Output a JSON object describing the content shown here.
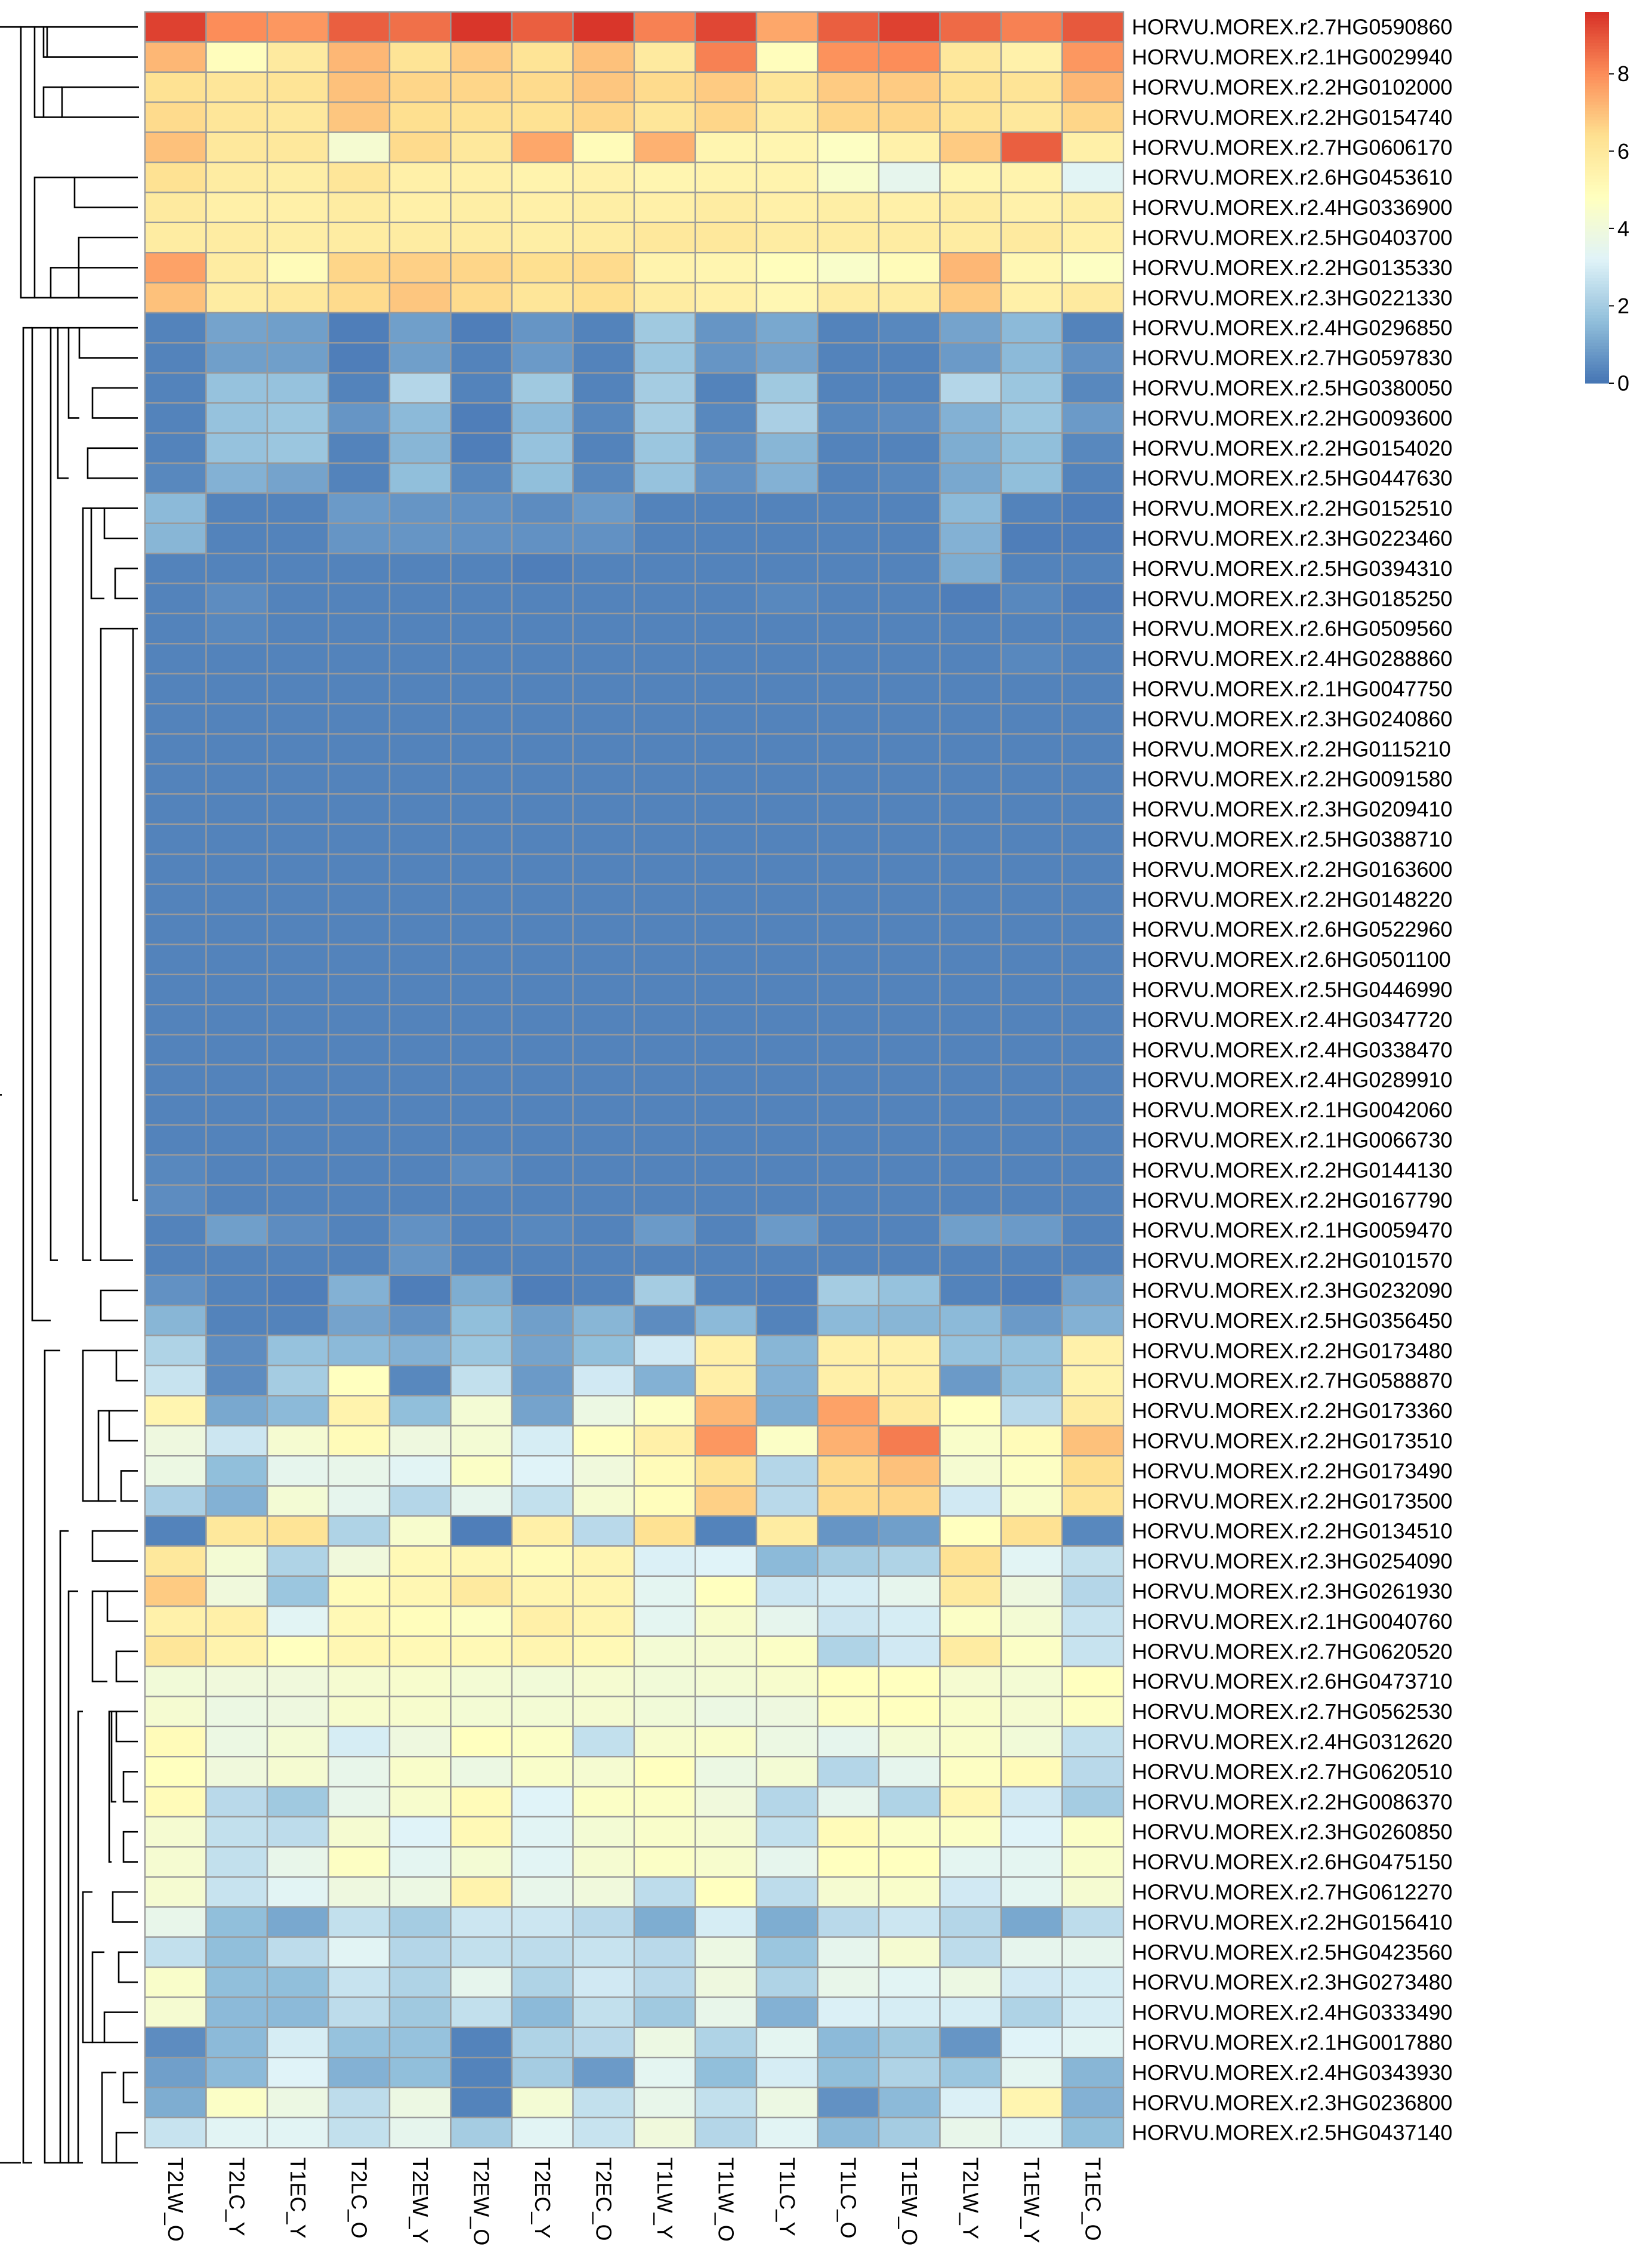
{
  "chart_data": {
    "type": "heatmap",
    "title": "",
    "xlabel": "",
    "ylabel": "",
    "columns": [
      "T2LW_O",
      "T2LC_Y",
      "T1EC_Y",
      "T2LC_O",
      "T2EW_Y",
      "T2EW_O",
      "T2EC_Y",
      "T2EC_O",
      "T1LW_Y",
      "T1LW_O",
      "T1LC_Y",
      "T1LC_O",
      "T1EW_O",
      "T2LW_Y",
      "T1EW_Y",
      "T1EC_O"
    ],
    "rows": [
      "HORVU.MOREX.r2.7HG0590860",
      "HORVU.MOREX.r2.1HG0029940",
      "HORVU.MOREX.r2.2HG0102000",
      "HORVU.MOREX.r2.2HG0154740",
      "HORVU.MOREX.r2.7HG0606170",
      "HORVU.MOREX.r2.6HG0453610",
      "HORVU.MOREX.r2.4HG0336900",
      "HORVU.MOREX.r2.5HG0403700",
      "HORVU.MOREX.r2.2HG0135330",
      "HORVU.MOREX.r2.3HG0221330",
      "HORVU.MOREX.r2.4HG0296850",
      "HORVU.MOREX.r2.7HG0597830",
      "HORVU.MOREX.r2.5HG0380050",
      "HORVU.MOREX.r2.2HG0093600",
      "HORVU.MOREX.r2.2HG0154020",
      "HORVU.MOREX.r2.5HG0447630",
      "HORVU.MOREX.r2.2HG0152510",
      "HORVU.MOREX.r2.3HG0223460",
      "HORVU.MOREX.r2.5HG0394310",
      "HORVU.MOREX.r2.3HG0185250",
      "HORVU.MOREX.r2.6HG0509560",
      "HORVU.MOREX.r2.4HG0288860",
      "HORVU.MOREX.r2.1HG0047750",
      "HORVU.MOREX.r2.3HG0240860",
      "HORVU.MOREX.r2.2HG0115210",
      "HORVU.MOREX.r2.2HG0091580",
      "HORVU.MOREX.r2.3HG0209410",
      "HORVU.MOREX.r2.5HG0388710",
      "HORVU.MOREX.r2.2HG0163600",
      "HORVU.MOREX.r2.2HG0148220",
      "HORVU.MOREX.r2.6HG0522960",
      "HORVU.MOREX.r2.6HG0501100",
      "HORVU.MOREX.r2.5HG0446990",
      "HORVU.MOREX.r2.4HG0347720",
      "HORVU.MOREX.r2.4HG0338470",
      "HORVU.MOREX.r2.4HG0289910",
      "HORVU.MOREX.r2.1HG0042060",
      "HORVU.MOREX.r2.1HG0066730",
      "HORVU.MOREX.r2.2HG0144130",
      "HORVU.MOREX.r2.2HG0167790",
      "HORVU.MOREX.r2.1HG0059470",
      "HORVU.MOREX.r2.2HG0101570",
      "HORVU.MOREX.r2.3HG0232090",
      "HORVU.MOREX.r2.5HG0356450",
      "HORVU.MOREX.r2.2HG0173480",
      "HORVU.MOREX.r2.7HG0588870",
      "HORVU.MOREX.r2.2HG0173360",
      "HORVU.MOREX.r2.2HG0173510",
      "HORVU.MOREX.r2.2HG0173490",
      "HORVU.MOREX.r2.2HG0173500",
      "HORVU.MOREX.r2.2HG0134510",
      "HORVU.MOREX.r2.3HG0254090",
      "HORVU.MOREX.r2.3HG0261930",
      "HORVU.MOREX.r2.1HG0040760",
      "HORVU.MOREX.r2.7HG0620520",
      "HORVU.MOREX.r2.6HG0473710",
      "HORVU.MOREX.r2.7HG0562530",
      "HORVU.MOREX.r2.4HG0312620",
      "HORVU.MOREX.r2.7HG0620510",
      "HORVU.MOREX.r2.2HG0086370",
      "HORVU.MOREX.r2.3HG0260850",
      "HORVU.MOREX.r2.6HG0475150",
      "HORVU.MOREX.r2.7HG0612270",
      "HORVU.MOREX.r2.2HG0156410",
      "HORVU.MOREX.r2.5HG0423560",
      "HORVU.MOREX.r2.3HG0273480",
      "HORVU.MOREX.r2.4HG0333490",
      "HORVU.MOREX.r2.1HG0017880",
      "HORVU.MOREX.r2.4HG0343930",
      "HORVU.MOREX.r2.3HG0236800",
      "HORVU.MOREX.r2.5HG0437140"
    ],
    "values": [
      [
        9.3,
        8.0,
        7.8,
        8.8,
        8.5,
        9.5,
        8.8,
        9.5,
        8.2,
        9.2,
        7.5,
        8.8,
        9.3,
        8.6,
        8.2,
        8.9
      ],
      [
        7.2,
        4.9,
        5.9,
        7.2,
        6.2,
        6.8,
        6.2,
        7.0,
        5.9,
        8.2,
        4.9,
        7.9,
        8.0,
        6.0,
        5.5,
        7.8
      ],
      [
        6.3,
        6.1,
        6.2,
        7.0,
        6.6,
        6.6,
        6.5,
        6.9,
        6.5,
        6.8,
        6.1,
        6.8,
        6.8,
        6.3,
        6.2,
        7.2
      ],
      [
        6.5,
        6.1,
        6.0,
        6.9,
        6.4,
        6.3,
        6.3,
        6.6,
        6.1,
        6.6,
        5.8,
        6.6,
        6.6,
        6.2,
        6.0,
        6.6
      ],
      [
        7.0,
        6.0,
        6.0,
        4.3,
        6.5,
        6.0,
        7.5,
        5.0,
        7.3,
        5.3,
        5.3,
        4.7,
        5.5,
        6.8,
        8.8,
        5.6
      ],
      [
        6.3,
        5.8,
        5.7,
        6.1,
        5.6,
        5.6,
        5.4,
        5.5,
        5.3,
        5.4,
        5.4,
        4.5,
        3.5,
        5.3,
        5.4,
        3.3
      ],
      [
        5.9,
        5.6,
        5.6,
        5.8,
        5.6,
        5.7,
        5.6,
        5.7,
        5.6,
        5.8,
        5.6,
        5.7,
        5.6,
        5.8,
        5.5,
        5.7
      ],
      [
        5.8,
        5.8,
        5.7,
        5.8,
        5.8,
        5.8,
        5.7,
        5.8,
        6.0,
        6.0,
        5.8,
        5.8,
        5.8,
        5.8,
        5.9,
        5.6
      ],
      [
        7.6,
        5.8,
        5.0,
        6.6,
        6.7,
        6.6,
        6.4,
        6.5,
        5.4,
        5.3,
        4.9,
        4.5,
        5.0,
        7.2,
        5.2,
        4.7
      ],
      [
        7.0,
        5.8,
        6.0,
        6.5,
        6.9,
        6.5,
        6.1,
        6.4,
        5.8,
        5.6,
        5.2,
        5.8,
        5.8,
        6.8,
        5.6,
        5.9
      ],
      [
        0.3,
        1.0,
        0.9,
        0.2,
        0.9,
        0.2,
        0.7,
        0.3,
        1.9,
        0.7,
        1.1,
        0.3,
        0.4,
        1.0,
        1.5,
        0.3
      ],
      [
        0.3,
        0.9,
        0.9,
        0.2,
        0.9,
        0.3,
        0.8,
        0.3,
        1.8,
        0.7,
        1.0,
        0.3,
        0.3,
        0.8,
        1.5,
        0.6
      ],
      [
        0.3,
        1.7,
        1.7,
        0.3,
        2.3,
        0.3,
        1.9,
        0.3,
        2.0,
        0.3,
        1.9,
        0.3,
        0.3,
        2.3,
        1.8,
        0.4
      ],
      [
        0.3,
        1.7,
        1.8,
        0.7,
        1.5,
        0.2,
        1.5,
        0.4,
        2.0,
        0.4,
        2.1,
        0.4,
        0.5,
        1.3,
        1.8,
        0.8
      ],
      [
        0.3,
        1.7,
        1.8,
        0.3,
        1.4,
        0.2,
        1.7,
        0.3,
        1.8,
        0.5,
        1.4,
        0.3,
        0.3,
        1.2,
        1.6,
        0.4
      ],
      [
        0.4,
        1.3,
        1.0,
        0.3,
        1.6,
        0.4,
        1.6,
        0.4,
        1.7,
        0.6,
        1.3,
        0.3,
        0.4,
        1.1,
        1.6,
        0.3
      ],
      [
        1.5,
        0.3,
        0.3,
        0.8,
        0.7,
        0.6,
        0.5,
        0.8,
        0.3,
        0.3,
        0.3,
        0.3,
        0.3,
        1.5,
        0.3,
        0.2
      ],
      [
        1.4,
        0.3,
        0.3,
        0.7,
        0.7,
        0.6,
        0.6,
        0.6,
        0.3,
        0.3,
        0.3,
        0.3,
        0.3,
        1.3,
        0.2,
        0.2
      ],
      [
        0.3,
        0.3,
        0.3,
        0.3,
        0.3,
        0.3,
        0.2,
        0.3,
        0.3,
        0.3,
        0.3,
        0.3,
        0.3,
        1.2,
        0.3,
        0.3
      ],
      [
        0.3,
        0.5,
        0.3,
        0.3,
        0.3,
        0.3,
        0.3,
        0.3,
        0.3,
        0.3,
        0.4,
        0.3,
        0.3,
        0.2,
        0.4,
        0.2
      ],
      [
        0.3,
        0.4,
        0.3,
        0.3,
        0.3,
        0.3,
        0.3,
        0.3,
        0.3,
        0.3,
        0.3,
        0.3,
        0.3,
        0.3,
        0.3,
        0.3
      ],
      [
        0.3,
        0.3,
        0.3,
        0.3,
        0.3,
        0.3,
        0.3,
        0.3,
        0.3,
        0.3,
        0.3,
        0.3,
        0.3,
        0.3,
        0.4,
        0.3
      ],
      [
        0.3,
        0.3,
        0.3,
        0.3,
        0.3,
        0.3,
        0.3,
        0.3,
        0.3,
        0.3,
        0.3,
        0.3,
        0.3,
        0.3,
        0.3,
        0.3
      ],
      [
        0.3,
        0.3,
        0.3,
        0.3,
        0.3,
        0.3,
        0.3,
        0.3,
        0.3,
        0.3,
        0.3,
        0.3,
        0.3,
        0.3,
        0.3,
        0.3
      ],
      [
        0.3,
        0.3,
        0.3,
        0.3,
        0.3,
        0.3,
        0.3,
        0.3,
        0.3,
        0.3,
        0.3,
        0.3,
        0.3,
        0.3,
        0.3,
        0.3
      ],
      [
        0.3,
        0.3,
        0.3,
        0.3,
        0.3,
        0.3,
        0.3,
        0.3,
        0.3,
        0.3,
        0.3,
        0.3,
        0.3,
        0.3,
        0.3,
        0.3
      ],
      [
        0.3,
        0.3,
        0.3,
        0.3,
        0.3,
        0.3,
        0.3,
        0.3,
        0.3,
        0.3,
        0.3,
        0.3,
        0.3,
        0.3,
        0.3,
        0.3
      ],
      [
        0.3,
        0.3,
        0.3,
        0.3,
        0.3,
        0.3,
        0.3,
        0.3,
        0.3,
        0.3,
        0.3,
        0.3,
        0.3,
        0.3,
        0.3,
        0.3
      ],
      [
        0.3,
        0.3,
        0.3,
        0.3,
        0.3,
        0.3,
        0.3,
        0.3,
        0.3,
        0.3,
        0.3,
        0.3,
        0.3,
        0.3,
        0.3,
        0.3
      ],
      [
        0.3,
        0.3,
        0.3,
        0.3,
        0.3,
        0.3,
        0.3,
        0.3,
        0.3,
        0.3,
        0.3,
        0.3,
        0.3,
        0.3,
        0.3,
        0.3
      ],
      [
        0.3,
        0.3,
        0.3,
        0.3,
        0.3,
        0.3,
        0.3,
        0.3,
        0.3,
        0.3,
        0.3,
        0.3,
        0.3,
        0.3,
        0.3,
        0.3
      ],
      [
        0.3,
        0.3,
        0.3,
        0.3,
        0.3,
        0.3,
        0.3,
        0.3,
        0.3,
        0.3,
        0.3,
        0.3,
        0.3,
        0.3,
        0.3,
        0.3
      ],
      [
        0.3,
        0.3,
        0.3,
        0.3,
        0.3,
        0.3,
        0.3,
        0.3,
        0.3,
        0.3,
        0.3,
        0.3,
        0.3,
        0.3,
        0.3,
        0.3
      ],
      [
        0.3,
        0.3,
        0.3,
        0.3,
        0.3,
        0.3,
        0.3,
        0.3,
        0.3,
        0.3,
        0.3,
        0.3,
        0.3,
        0.3,
        0.3,
        0.3
      ],
      [
        0.3,
        0.3,
        0.3,
        0.3,
        0.3,
        0.3,
        0.3,
        0.3,
        0.3,
        0.3,
        0.3,
        0.3,
        0.3,
        0.3,
        0.3,
        0.3
      ],
      [
        0.3,
        0.3,
        0.3,
        0.3,
        0.3,
        0.3,
        0.3,
        0.3,
        0.3,
        0.3,
        0.3,
        0.3,
        0.3,
        0.3,
        0.3,
        0.3
      ],
      [
        0.3,
        0.3,
        0.3,
        0.3,
        0.3,
        0.3,
        0.3,
        0.3,
        0.3,
        0.3,
        0.3,
        0.3,
        0.3,
        0.3,
        0.3,
        0.3
      ],
      [
        0.3,
        0.3,
        0.3,
        0.3,
        0.3,
        0.3,
        0.3,
        0.3,
        0.3,
        0.3,
        0.3,
        0.3,
        0.3,
        0.3,
        0.3,
        0.3
      ],
      [
        0.4,
        0.3,
        0.3,
        0.3,
        0.3,
        0.5,
        0.3,
        0.3,
        0.3,
        0.3,
        0.3,
        0.3,
        0.3,
        0.3,
        0.3,
        0.3
      ],
      [
        0.5,
        0.3,
        0.3,
        0.3,
        0.3,
        0.3,
        0.3,
        0.3,
        0.3,
        0.3,
        0.3,
        0.3,
        0.3,
        0.3,
        0.3,
        0.3
      ],
      [
        0.3,
        0.9,
        0.5,
        0.3,
        0.6,
        0.3,
        0.4,
        0.3,
        0.8,
        0.3,
        0.8,
        0.3,
        0.3,
        0.9,
        0.8,
        0.3
      ],
      [
        0.3,
        0.3,
        0.3,
        0.3,
        0.7,
        0.3,
        0.3,
        0.3,
        0.3,
        0.3,
        0.3,
        0.3,
        0.3,
        0.3,
        0.3,
        0.3
      ],
      [
        0.6,
        0.3,
        0.2,
        1.3,
        0.2,
        1.2,
        0.2,
        0.3,
        2.0,
        0.3,
        0.2,
        2.0,
        1.7,
        0.3,
        0.2,
        1.0
      ],
      [
        1.4,
        0.3,
        0.3,
        1.0,
        0.6,
        1.6,
        0.9,
        1.4,
        0.5,
        1.5,
        0.3,
        1.5,
        1.4,
        1.5,
        0.8,
        1.3
      ],
      [
        2.2,
        0.5,
        1.7,
        1.5,
        1.3,
        1.8,
        1.0,
        1.6,
        2.9,
        5.6,
        1.4,
        5.6,
        5.5,
        1.7,
        1.7,
        5.5
      ],
      [
        2.7,
        0.5,
        2.0,
        4.8,
        0.4,
        2.6,
        0.8,
        2.9,
        1.3,
        5.6,
        1.3,
        5.6,
        5.6,
        0.8,
        1.7,
        5.4
      ],
      [
        5.3,
        1.1,
        1.5,
        5.4,
        1.6,
        4.2,
        1.0,
        3.8,
        4.7,
        7.2,
        1.2,
        7.6,
        5.9,
        4.8,
        2.4,
        5.8
      ],
      [
        3.9,
        2.8,
        4.3,
        5.0,
        3.9,
        4.2,
        3.0,
        4.8,
        5.6,
        7.8,
        4.6,
        7.3,
        8.3,
        4.5,
        5.0,
        7.0
      ],
      [
        3.8,
        1.6,
        3.5,
        3.6,
        3.3,
        4.6,
        3.2,
        4.0,
        5.0,
        6.2,
        2.3,
        6.5,
        7.0,
        4.3,
        4.7,
        6.4
      ],
      [
        2.1,
        1.3,
        4.2,
        3.5,
        2.3,
        3.5,
        2.6,
        4.3,
        4.9,
        6.7,
        2.4,
        6.5,
        6.6,
        2.9,
        4.5,
        6.2
      ],
      [
        0.3,
        6.0,
        6.2,
        2.2,
        4.4,
        0.2,
        5.6,
        2.4,
        6.3,
        0.3,
        5.8,
        0.7,
        0.9,
        4.8,
        6.3,
        0.4
      ],
      [
        6.0,
        4.2,
        2.2,
        4.0,
        5.1,
        5.2,
        5.0,
        5.3,
        3.1,
        3.2,
        1.5,
        2.0,
        2.2,
        6.3,
        3.3,
        2.6
      ],
      [
        6.8,
        4.0,
        1.8,
        5.0,
        5.2,
        5.9,
        5.3,
        5.3,
        3.4,
        4.8,
        2.8,
        3.0,
        3.5,
        5.9,
        3.9,
        2.3
      ],
      [
        5.5,
        5.6,
        3.3,
        5.1,
        4.9,
        4.7,
        5.6,
        5.3,
        3.4,
        4.4,
        3.5,
        2.8,
        3.0,
        4.6,
        4.2,
        2.7
      ],
      [
        6.1,
        5.4,
        4.8,
        5.2,
        5.1,
        5.1,
        5.3,
        5.1,
        4.2,
        4.3,
        4.6,
        2.2,
        2.9,
        5.8,
        4.6,
        2.7
      ],
      [
        4.1,
        4.0,
        4.0,
        4.3,
        4.4,
        4.2,
        4.1,
        4.3,
        4.1,
        4.2,
        4.4,
        4.8,
        4.8,
        4.3,
        4.2,
        4.8
      ],
      [
        4.3,
        3.8,
        3.9,
        4.4,
        4.4,
        4.2,
        4.2,
        4.3,
        4.1,
        3.8,
        3.9,
        4.7,
        4.8,
        4.5,
        4.3,
        4.7
      ],
      [
        5.0,
        3.8,
        4.2,
        3.0,
        3.9,
        4.8,
        4.6,
        2.6,
        4.4,
        4.5,
        3.8,
        3.5,
        4.2,
        4.5,
        4.1,
        2.6
      ],
      [
        4.8,
        4.0,
        4.3,
        3.6,
        4.5,
        3.8,
        4.5,
        4.3,
        4.8,
        3.8,
        4.2,
        2.3,
        3.5,
        4.7,
        5.0,
        2.4
      ],
      [
        5.0,
        2.4,
        1.9,
        3.6,
        4.4,
        5.0,
        3.2,
        4.6,
        4.6,
        4.0,
        2.3,
        3.5,
        2.2,
        5.2,
        2.9,
        2.0
      ],
      [
        4.3,
        2.6,
        2.5,
        4.3,
        3.2,
        5.1,
        3.3,
        4.2,
        4.5,
        4.3,
        2.6,
        5.0,
        4.6,
        4.6,
        3.2,
        4.6
      ],
      [
        4.3,
        2.6,
        3.6,
        4.7,
        3.4,
        4.2,
        3.3,
        4.3,
        4.6,
        4.4,
        3.5,
        4.8,
        4.8,
        3.4,
        3.4,
        4.5
      ],
      [
        4.3,
        2.7,
        3.3,
        3.9,
        3.8,
        5.4,
        3.6,
        4.0,
        2.5,
        4.8,
        2.5,
        4.3,
        4.5,
        2.9,
        3.4,
        4.3
      ],
      [
        3.6,
        1.6,
        1.1,
        2.6,
        2.0,
        2.8,
        2.8,
        2.4,
        1.2,
        3.0,
        1.2,
        2.4,
        2.8,
        2.3,
        1.1,
        2.5
      ],
      [
        2.6,
        1.6,
        2.5,
        3.3,
        2.3,
        2.6,
        2.5,
        2.7,
        2.4,
        3.8,
        1.8,
        3.5,
        4.3,
        2.5,
        3.5,
        3.5
      ],
      [
        4.5,
        1.6,
        1.6,
        2.7,
        2.2,
        3.5,
        2.2,
        2.9,
        2.4,
        3.9,
        2.2,
        3.6,
        3.3,
        3.8,
        2.9,
        3.0
      ],
      [
        4.3,
        1.5,
        1.5,
        2.5,
        1.9,
        2.6,
        1.5,
        2.6,
        1.9,
        3.6,
        1.3,
        3.1,
        3.0,
        3.0,
        2.2,
        3.0
      ],
      [
        0.5,
        1.5,
        3.0,
        1.7,
        1.7,
        0.3,
        2.2,
        2.4,
        3.8,
        2.2,
        3.4,
        1.5,
        1.9,
        0.7,
        3.2,
        3.3
      ],
      [
        0.9,
        1.5,
        3.2,
        1.3,
        1.6,
        0.3,
        2.0,
        0.8,
        3.4,
        1.6,
        3.0,
        1.6,
        2.2,
        1.8,
        3.4,
        1.4
      ],
      [
        1.2,
        4.6,
        3.8,
        2.5,
        3.8,
        0.3,
        4.2,
        2.6,
        3.6,
        2.6,
        3.8,
        0.6,
        1.5,
        3.1,
        5.3,
        1.3
      ],
      [
        2.7,
        3.3,
        3.3,
        2.6,
        3.5,
        2.0,
        3.3,
        2.7,
        4.0,
        2.3,
        3.3,
        1.5,
        2.0,
        3.6,
        3.3,
        1.6
      ]
    ],
    "color_scale": {
      "min": 0,
      "max": 9.6,
      "stops": [
        "#4575B4",
        "#91BFDB",
        "#E0F3F8",
        "#FFFFBF",
        "#FEE090",
        "#FC8D59",
        "#D73027"
      ]
    },
    "legend": {
      "ticks": [
        0,
        2,
        4,
        6,
        8
      ],
      "placement": "top-right"
    },
    "row_dendrogram": true,
    "grid": false
  }
}
